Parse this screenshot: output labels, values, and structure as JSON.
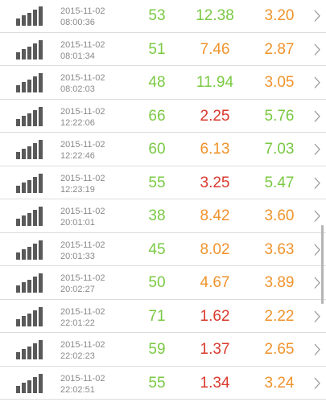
{
  "colors": {
    "good": "#7ac943",
    "medium": "#f0932b",
    "bad": "#d93a2e"
  },
  "icons": {
    "signal": "signal-strength-icon",
    "chevron": "chevron-right-icon"
  },
  "rows": [
    {
      "date": "2015-11-02",
      "time": "08:00:36",
      "v1": "53",
      "c1": "good",
      "v2": "12.38",
      "c2": "good",
      "v3": "3.20",
      "c3": "medium"
    },
    {
      "date": "2015-11-02",
      "time": "08:01:34",
      "v1": "51",
      "c1": "good",
      "v2": "7.46",
      "c2": "medium",
      "v3": "2.87",
      "c3": "medium"
    },
    {
      "date": "2015-11-02",
      "time": "08:02:03",
      "v1": "48",
      "c1": "good",
      "v2": "11.94",
      "c2": "good",
      "v3": "3.05",
      "c3": "medium"
    },
    {
      "date": "2015-11-02",
      "time": "12:22:06",
      "v1": "66",
      "c1": "good",
      "v2": "2.25",
      "c2": "bad",
      "v3": "5.76",
      "c3": "good"
    },
    {
      "date": "2015-11-02",
      "time": "12:22:46",
      "v1": "60",
      "c1": "good",
      "v2": "6.13",
      "c2": "medium",
      "v3": "7.03",
      "c3": "good"
    },
    {
      "date": "2015-11-02",
      "time": "12:23:19",
      "v1": "55",
      "c1": "good",
      "v2": "3.25",
      "c2": "bad",
      "v3": "5.47",
      "c3": "good"
    },
    {
      "date": "2015-11-02",
      "time": "20:01:01",
      "v1": "38",
      "c1": "good",
      "v2": "8.42",
      "c2": "medium",
      "v3": "3.60",
      "c3": "medium"
    },
    {
      "date": "2015-11-02",
      "time": "20:01:33",
      "v1": "45",
      "c1": "good",
      "v2": "8.02",
      "c2": "medium",
      "v3": "3.63",
      "c3": "medium"
    },
    {
      "date": "2015-11-02",
      "time": "20:02:27",
      "v1": "50",
      "c1": "good",
      "v2": "4.67",
      "c2": "medium",
      "v3": "3.89",
      "c3": "medium"
    },
    {
      "date": "2015-11-02",
      "time": "22:01:22",
      "v1": "71",
      "c1": "good",
      "v2": "1.62",
      "c2": "bad",
      "v3": "2.22",
      "c3": "medium"
    },
    {
      "date": "2015-11-02",
      "time": "22:02:23",
      "v1": "59",
      "c1": "good",
      "v2": "1.37",
      "c2": "bad",
      "v3": "2.65",
      "c3": "medium"
    },
    {
      "date": "2015-11-02",
      "time": "22:02:51",
      "v1": "55",
      "c1": "good",
      "v2": "1.34",
      "c2": "bad",
      "v3": "3.24",
      "c3": "medium"
    }
  ]
}
